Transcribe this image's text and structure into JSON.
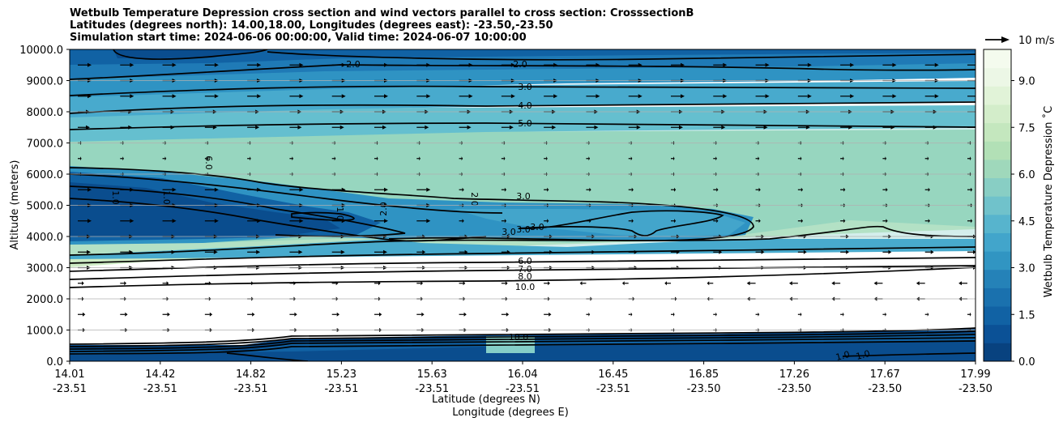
{
  "chart_data": {
    "type": "contour",
    "title": [
      "Wetbulb Temperature Depression cross section and wind vectors parallel to cross section: CrosssectionB",
      "Latitudes (degrees north): 14.00,18.00, Longitudes (degrees east): -23.50,-23.50",
      "Simulation start time: 2024-06-06 00:00:00, Valid time: 2024-06-07 10:00:00"
    ],
    "ylabel": "Altitude (meters)",
    "xlabel_lat": "Latitude (degrees N)",
    "xlabel_lon": "Longitude (degrees E)",
    "ylim": [
      0,
      10000
    ],
    "y_ticks": [
      "0.0",
      "1000.0",
      "2000.0",
      "3000.0",
      "4000.0",
      "5000.0",
      "6000.0",
      "7000.0",
      "8000.0",
      "9000.0",
      "10000.0"
    ],
    "x_ticks": [
      {
        "lat": "14.01",
        "lon": "-23.51"
      },
      {
        "lat": "14.42",
        "lon": "-23.51"
      },
      {
        "lat": "14.82",
        "lon": "-23.51"
      },
      {
        "lat": "15.23",
        "lon": "-23.51"
      },
      {
        "lat": "15.63",
        "lon": "-23.51"
      },
      {
        "lat": "16.04",
        "lon": "-23.51"
      },
      {
        "lat": "16.45",
        "lon": "-23.51"
      },
      {
        "lat": "16.85",
        "lon": "-23.50"
      },
      {
        "lat": "17.26",
        "lon": "-23.50"
      },
      {
        "lat": "17.67",
        "lon": "-23.50"
      },
      {
        "lat": "17.99",
        "lon": "-23.50"
      }
    ],
    "colorbar": {
      "label": "Wetbulb Temperature Depression ˚C",
      "range": [
        0,
        10
      ],
      "ticks": [
        "0.0",
        "1.5",
        "3.0",
        "4.5",
        "6.0",
        "7.5",
        "9.0"
      ]
    },
    "wind_key": "10 m/s",
    "contour_labels": [
      "2.0",
      "2.0",
      "3.0",
      "4.0",
      "5.0",
      "6.0",
      "1.0",
      "1.0",
      "1.0",
      "2.0",
      "2.0",
      "3.0",
      "3.0",
      "3.0",
      "3.0",
      "6.0",
      "7.0",
      "8.0",
      "10.0",
      "10.0",
      "1.0",
      "1.0"
    ]
  },
  "colors": {
    "scale": [
      "#0a4d8e",
      "#1162a4",
      "#1f7ab6",
      "#2f93c3",
      "#48aacd",
      "#65bfcf",
      "#85cfc8",
      "#a1dbbb",
      "#b8e3b6",
      "#cdebc4",
      "#e0f3d6",
      "#eef8e8",
      "#ffffff"
    ]
  }
}
